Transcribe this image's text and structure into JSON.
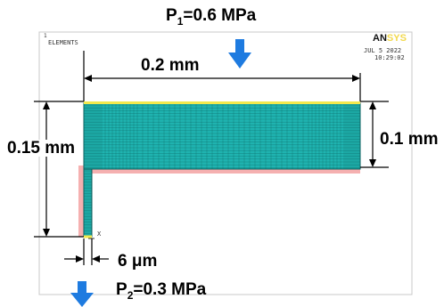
{
  "loads": {
    "p1_symbol": "P",
    "p1_sub": "1",
    "p1_value": "=0.6 MPa",
    "p2_symbol": "P",
    "p2_sub": "2",
    "p2_value": "=0.3 MPa"
  },
  "dimensions": {
    "width_top": "0.2 mm",
    "height_total": "0.15 mm",
    "height_right": "0.1 mm",
    "stem_width": "6 μm"
  },
  "ansys": {
    "panel_label": "ELEMENTS",
    "logo_a": "AN",
    "logo_b": "SYS",
    "date": "JUL  5 2022",
    "time": "10:29:02",
    "axis_x": "X"
  },
  "colors": {
    "mesh_fill": "#1fb3b0",
    "mesh_line": "#0b5e5c",
    "arrow": "#1e7be0",
    "top_edge": "#f2e94e",
    "bottom_edge": "#f39a9a",
    "frame": "#c8c8c8"
  }
}
